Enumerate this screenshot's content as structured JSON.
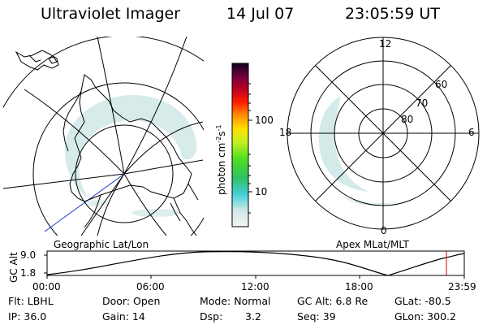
{
  "header": {
    "instrument": "Ultraviolet Imager",
    "date": "14 Jul 07",
    "time": "23:05:59 UT"
  },
  "left_map": {
    "label": "Geographic Lat/Lon"
  },
  "right_map": {
    "label": "Apex MLat/MLT",
    "mlt_labels": [
      "12",
      "18",
      "6",
      "0"
    ],
    "lat_labels": [
      "60",
      "70",
      "80"
    ]
  },
  "colorbar": {
    "unit_label": "photon cm",
    "unit_sup": "-2",
    "unit_s": "s",
    "unit_sup2": "-1",
    "ticks": [
      "100",
      "10"
    ]
  },
  "altitude_plot": {
    "ylabel": "GC Alt",
    "y_ticks": [
      "9.0",
      "1.8"
    ],
    "x_ticks": [
      "00:00",
      "06:00",
      "12:00",
      "18:00",
      "23:59"
    ]
  },
  "info": {
    "flt": "Flt: LBHL",
    "door": "Door: Open",
    "mode": "Mode: Normal",
    "gc_alt": "GC Alt: 6.8 Re",
    "glat": "GLat: -80.5",
    "ip": "IP: 36.0",
    "gain": "Gain: 14",
    "dsp_label": "Dsp:",
    "dsp_value": "3.2",
    "seq": "Seq: 39",
    "glon": "GLon: 300.2"
  },
  "colors": {
    "aurora": "#cfe8e6",
    "map_line": "#000000",
    "meridian_blue": "#2040c0",
    "time_marker": "#d00000"
  }
}
